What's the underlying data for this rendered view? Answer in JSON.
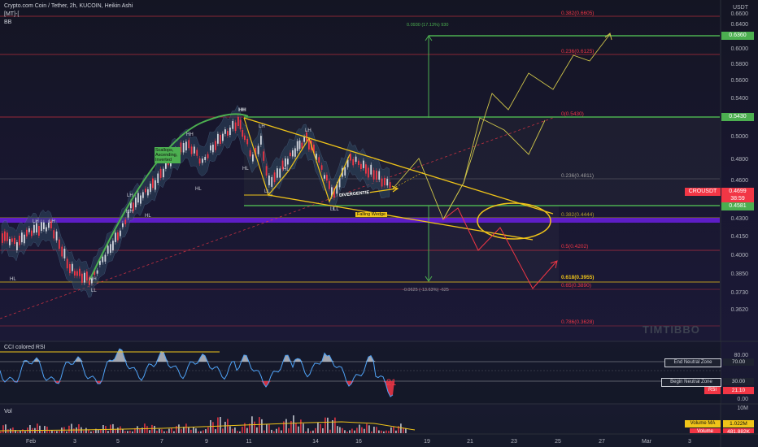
{
  "header": {
    "title": "Crypto.com Coin / Tether, 2h, KUCOIN, Heikin Ashi",
    "indicator1": "[MT]-[",
    "indicator2": "BB"
  },
  "price_axis": {
    "currency": "USDT",
    "ticks": [
      "0.6600",
      "0.6400",
      "0.6200",
      "0.6000",
      "0.5800",
      "0.5600",
      "0.5400",
      "0.5200",
      "0.5000",
      "0.4800",
      "0.4600",
      "0.4450",
      "0.4300",
      "0.4150",
      "0.4000",
      "0.3850",
      "0.3730",
      "0.3620"
    ]
  },
  "badges": {
    "target": "0.6360",
    "resistance": "0.5430",
    "symbol": "CROUSDT",
    "last_price": "0.4699",
    "countdown": "38:59",
    "support": "0.4581"
  },
  "fib_levels": [
    {
      "label": "0.382(0.6605)",
      "color": "#f23645"
    },
    {
      "label": "0.236(0.6125)",
      "color": "#f23645"
    },
    {
      "label": "0(0.5430)",
      "color": "#f23645"
    },
    {
      "label": "0.236(0.4811)",
      "color": "#9e9e9e"
    },
    {
      "label": "0.382(0.4444)",
      "color": "#b39c2c"
    },
    {
      "label": "0.5(0.4202)",
      "color": "#f23645"
    },
    {
      "label": "0.618(0.3955)",
      "color": "#f0c419"
    },
    {
      "label": "0.65(0.3890)",
      "color": "#f23645"
    },
    {
      "label": "0.786(0.3628)",
      "color": "#f23645"
    }
  ],
  "annotations": {
    "measure_up": "0.0930 (17.13%) 930",
    "measure_down": "-0.0625 (-13.63%) -625",
    "scallops": "Scallops, Ascending, Inverted",
    "divergence": "DIVERGENTIE",
    "falling_wedge": "Falling Wedge",
    "swing_labels": [
      "HH",
      "HH",
      "HH",
      "LH",
      "LH",
      "LH",
      "LH",
      "HH",
      "HH",
      "LH",
      "LL",
      "HL",
      "HL",
      "HL",
      "HL",
      "LL",
      "LL",
      "HL",
      "LL"
    ]
  },
  "watermark": "TIMTIBBO",
  "rsi": {
    "title": "CCI colored RSI",
    "value_label": "21",
    "upper_zone_label": "End Neutral Zone",
    "upper_zone_value": "70.00",
    "lower_zone_label": "Begin Neutral Zone",
    "lower_zone_value": "30.00",
    "rsi_tag": "RSI",
    "rsi_value": "21.10",
    "axis_top": "80.00",
    "axis_bottom": "0.00"
  },
  "volume": {
    "title": "Vol",
    "axis_label": "10M",
    "ma_tag": "Volume MA",
    "ma_value": "1.022M",
    "vol_tag": "Volume",
    "vol_value": "481.882K"
  },
  "time_axis": [
    "Feb",
    "3",
    "5",
    "7",
    "9",
    "11",
    "14",
    "16",
    "19",
    "21",
    "23",
    "25",
    "27",
    "Mar",
    "3"
  ],
  "colors": {
    "green": "#4caf50",
    "red": "#f23645",
    "yellow": "#f0c419",
    "purple": "#7b2fff",
    "up_candle": "#d1d4dc",
    "down_candle": "#f23645"
  }
}
